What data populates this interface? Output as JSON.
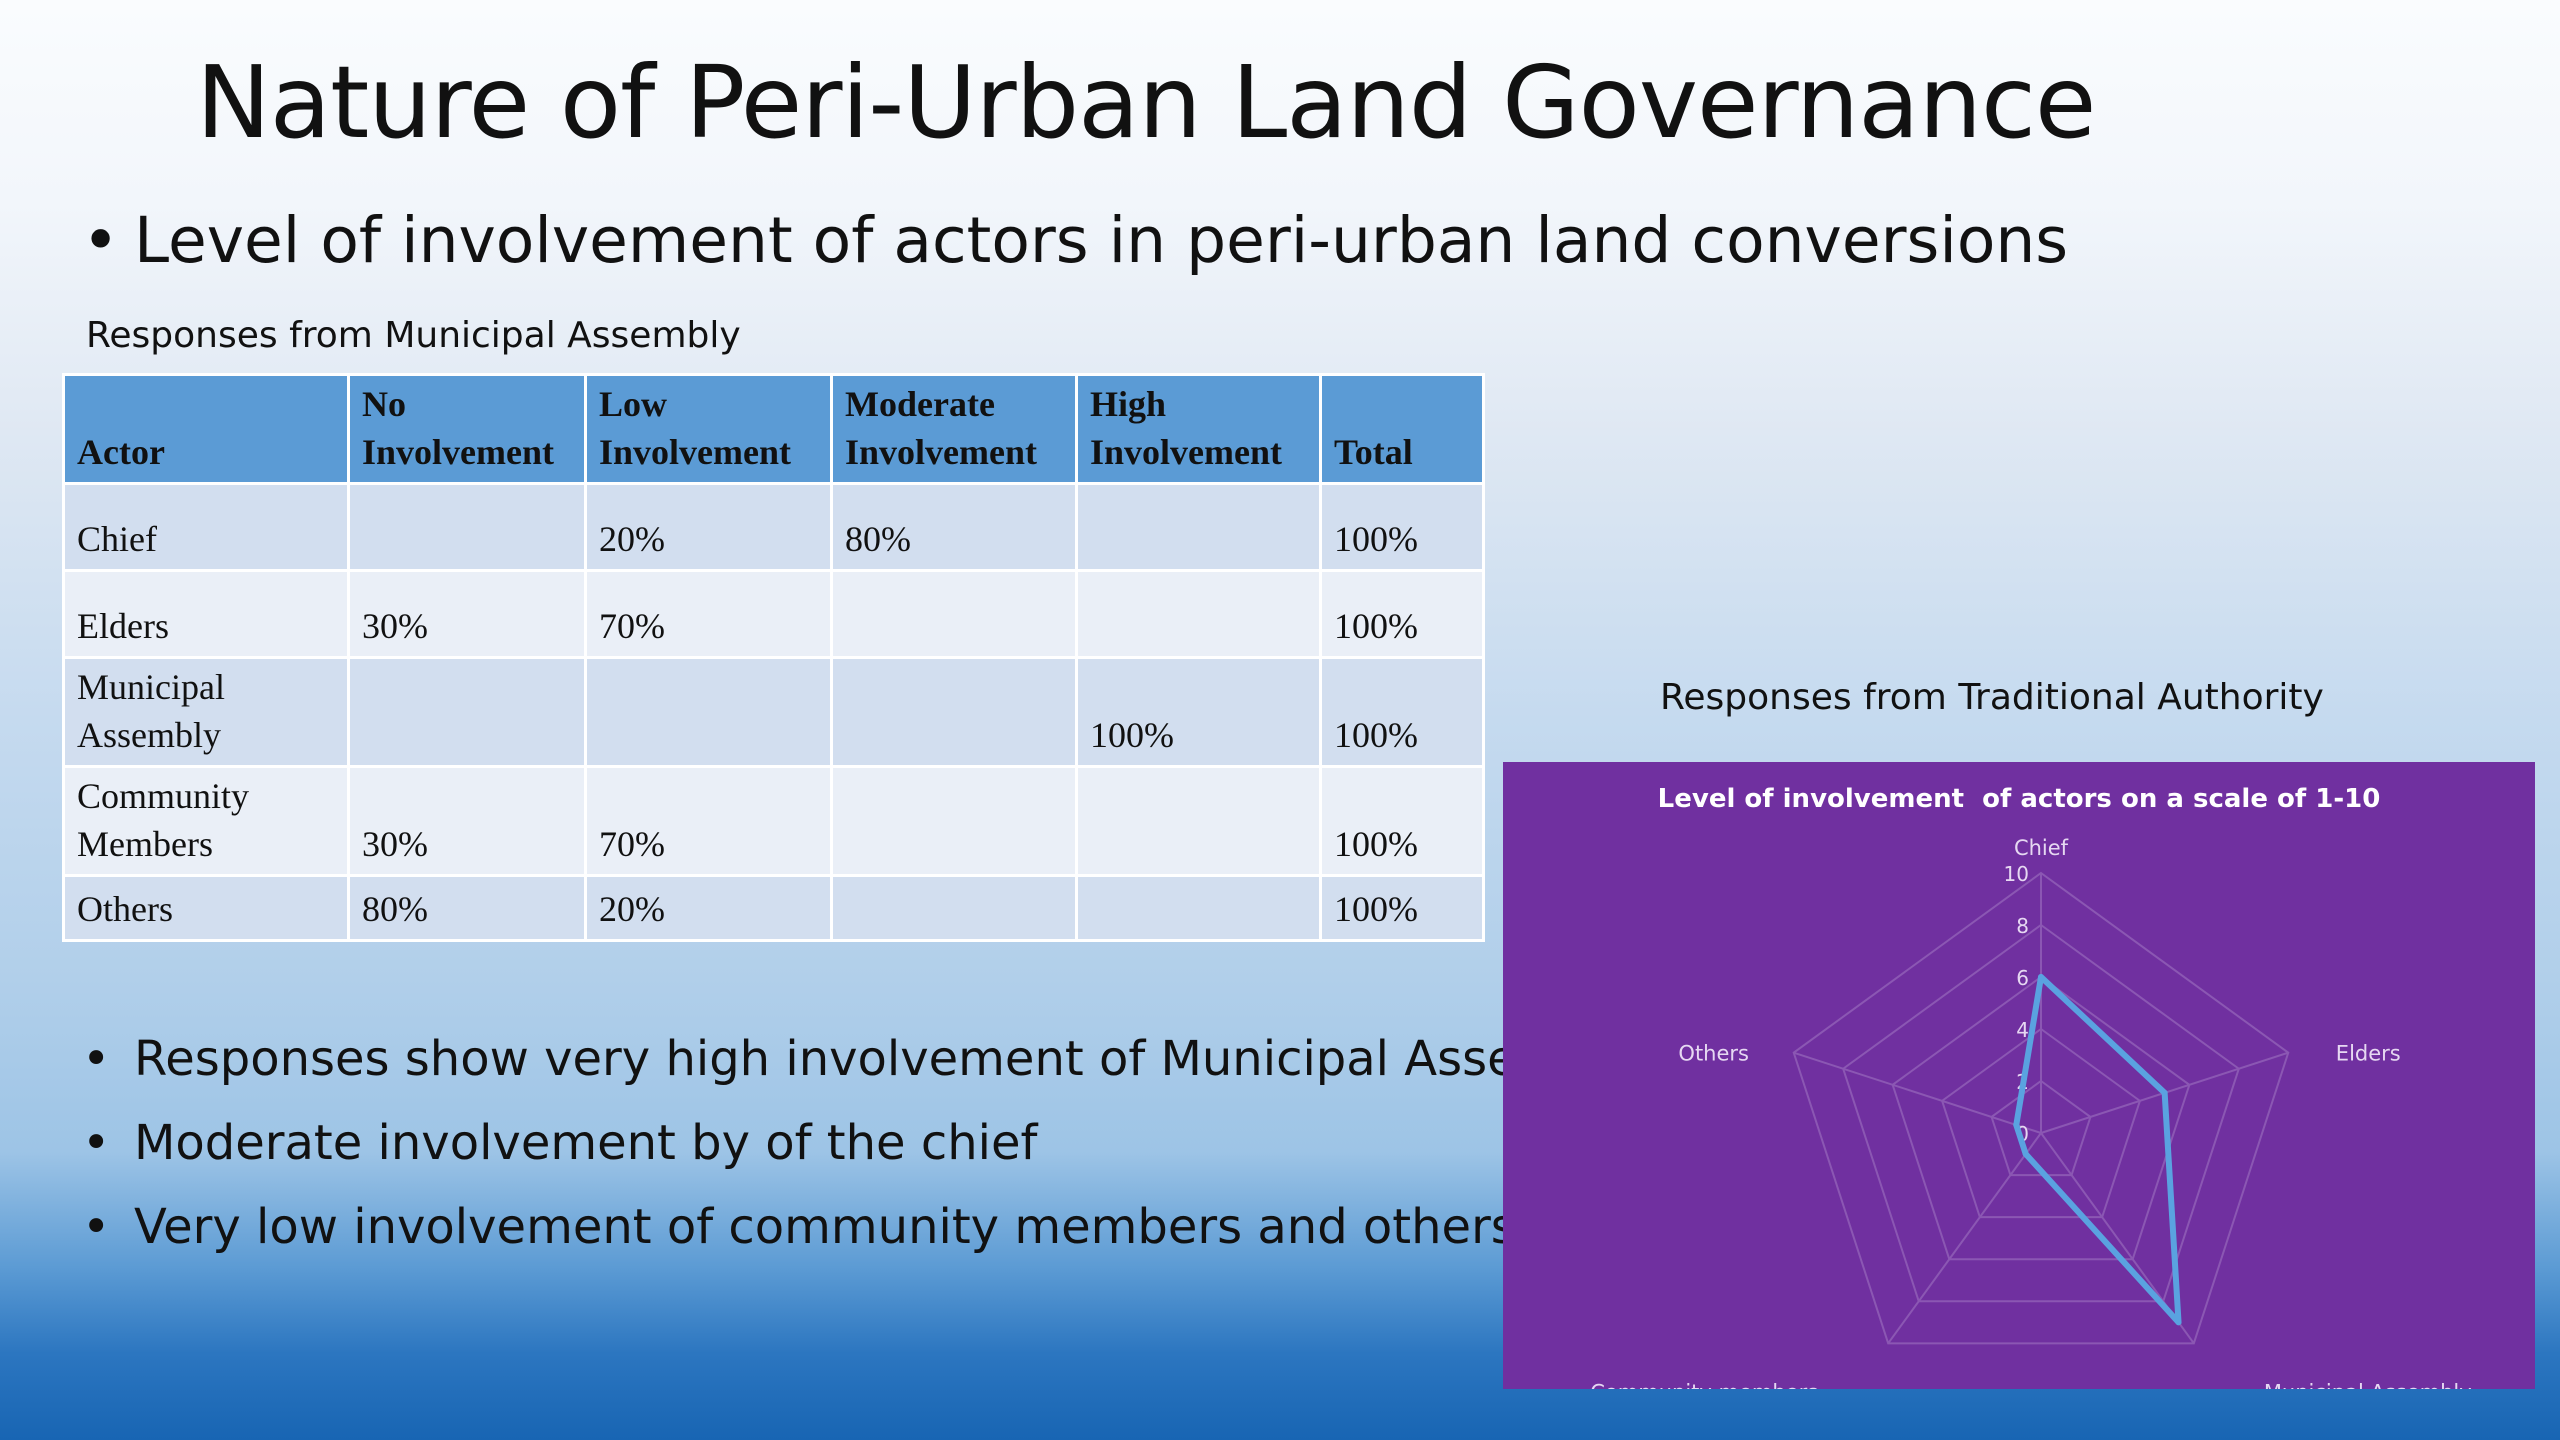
{
  "slide": {
    "title": "Nature of Peri-Urban Land Governance",
    "main_bullet": "Level of involvement of actors in peri-urban land conversions",
    "bullet_symbol": "•"
  },
  "table_section": {
    "caption": "Responses from Municipal Assembly",
    "headers": {
      "actor": "Actor",
      "no_1": "No",
      "no_2": "Involvement",
      "low_1": "Low",
      "low_2": "Involvement",
      "mod_1": "Moderate",
      "mod_2": "Involvement",
      "high_1": "High",
      "high_2": "Involvement",
      "total": "Total"
    },
    "rows": [
      {
        "actor_1": "",
        "actor_2": "Chief",
        "no": "",
        "low": "20%",
        "moderate": "80%",
        "high": "",
        "total": "100%"
      },
      {
        "actor_1": "",
        "actor_2": "Elders",
        "no": "30%",
        "low": "70%",
        "moderate": "",
        "high": "",
        "total": "100%"
      },
      {
        "actor_1": "Municipal",
        "actor_2": "Assembly",
        "no": "",
        "low": "",
        "moderate": "",
        "high": "100%",
        "total": "100%"
      },
      {
        "actor_1": "Community",
        "actor_2": "Members",
        "no": "30%",
        "low": "70%",
        "moderate": "",
        "high": "",
        "total": "100%"
      },
      {
        "actor_1": "",
        "actor_2": "Others",
        "no": "80%",
        "low": "20%",
        "moderate": "",
        "high": "",
        "total": "100%"
      }
    ]
  },
  "summary_bullets": [
    "Responses show very high involvement of Municipal Assembly",
    "Moderate involvement by of the chief",
    "Very low involvement of community members and others"
  ],
  "chart_section": {
    "caption": "Responses from Traditional Authority"
  },
  "chart_data": {
    "type": "radar",
    "title": "Level of involvement  of actors on a scale of 1-10",
    "categories": [
      "Chief",
      "Elders",
      "Municipal Assembly",
      "Community members",
      "Others"
    ],
    "series": [
      {
        "values": [
          6,
          5,
          9,
          1,
          1
        ]
      }
    ],
    "ticks": [
      0,
      2,
      4,
      6,
      8,
      10
    ],
    "rlim": [
      0,
      10
    ],
    "colors": {
      "background": "#7030a0",
      "series_line": "#5aa2e0",
      "grid": "#8b57b3",
      "text": "#e6d8f2"
    }
  }
}
